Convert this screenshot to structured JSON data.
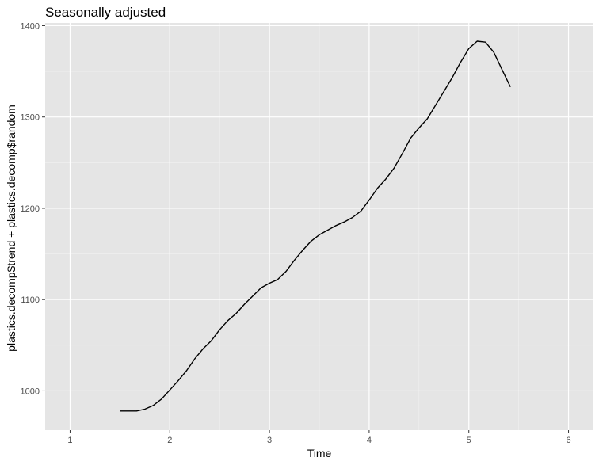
{
  "chart_data": {
    "type": "line",
    "title": "Seasonally adjusted",
    "xlabel": "Time",
    "ylabel": "plastics.decomp$trend + plastics.decomp$random",
    "xlim": [
      0.75,
      6.25
    ],
    "ylim": [
      957,
      1403
    ],
    "x_ticks": [
      1,
      2,
      3,
      4,
      5,
      6
    ],
    "y_ticks": [
      1000,
      1100,
      1200,
      1300,
      1400
    ],
    "grid": true,
    "legend": "none",
    "colors": {
      "panel": "#e5e5e5",
      "grid_major": "#ffffff",
      "line": "#000000",
      "tick_label": "#4d4d4d"
    },
    "series": [
      {
        "x": [
          1.5,
          1.583,
          1.667,
          1.75,
          1.833,
          1.917,
          2.0,
          2.083,
          2.167,
          2.25,
          2.333,
          2.417,
          2.5,
          2.583,
          2.667,
          2.75,
          2.833,
          2.917,
          3.0,
          3.083,
          3.167,
          3.25,
          3.333,
          3.417,
          3.5,
          3.583,
          3.667,
          3.75,
          3.833,
          3.917,
          4.0,
          4.083,
          4.167,
          4.25,
          4.333,
          4.417,
          4.5,
          4.583,
          4.667,
          4.75,
          4.833,
          4.917,
          5.0,
          5.083,
          5.167,
          5.25,
          5.333,
          5.417
        ],
        "values": [
          978,
          978,
          978,
          980,
          984,
          991,
          1001,
          1011,
          1022,
          1035,
          1046,
          1055,
          1067,
          1077,
          1085,
          1095,
          1104,
          1113,
          1118,
          1122,
          1131,
          1143,
          1154,
          1164,
          1171,
          1176,
          1181,
          1185,
          1190,
          1197,
          1209,
          1222,
          1232,
          1244,
          1260,
          1277,
          1288,
          1298,
          1313,
          1328,
          1343,
          1360,
          1375,
          1383,
          1382,
          1371,
          1352,
          1333
        ]
      }
    ]
  }
}
